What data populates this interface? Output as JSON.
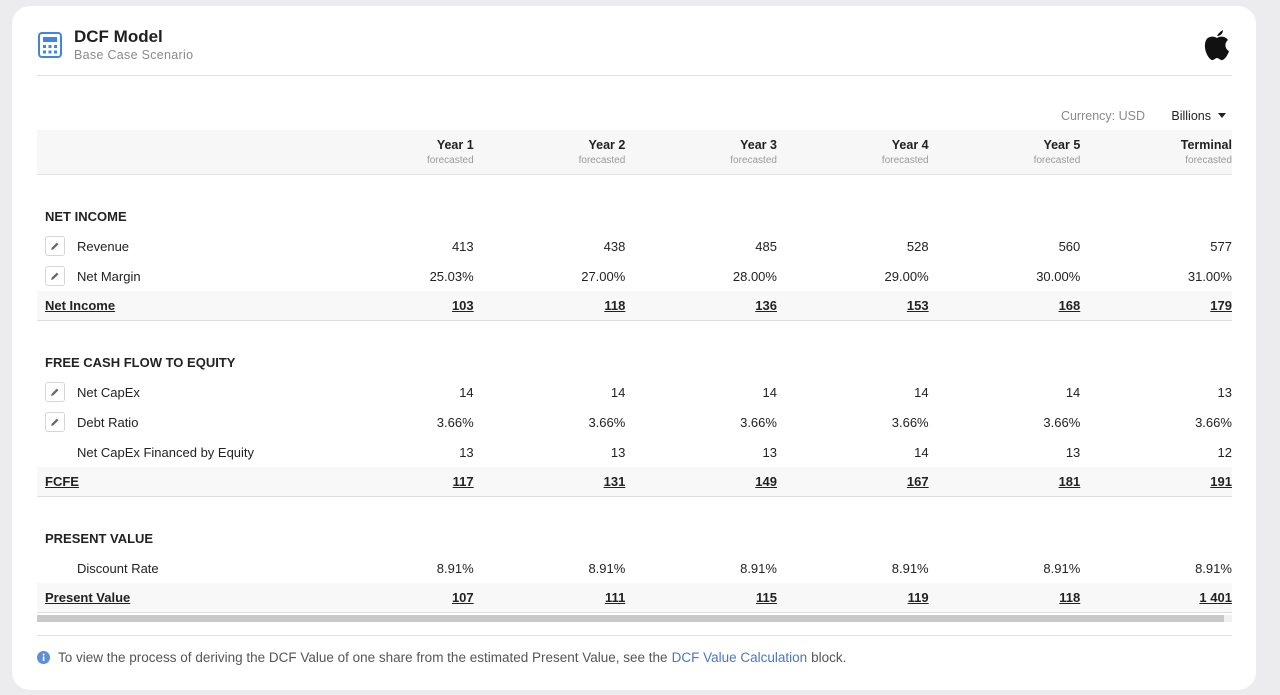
{
  "header": {
    "title": "DCF Model",
    "subtitle": "Base Case Scenario"
  },
  "toolbar": {
    "currency": "Currency: USD",
    "units": "Billions"
  },
  "table": {
    "columns": [
      {
        "name": "Year 1",
        "note": "forecasted"
      },
      {
        "name": "Year 2",
        "note": "forecasted"
      },
      {
        "name": "Year 3",
        "note": "forecasted"
      },
      {
        "name": "Year 4",
        "note": "forecasted"
      },
      {
        "name": "Year 5",
        "note": "forecasted"
      },
      {
        "name": "Terminal",
        "note": "forecasted"
      }
    ],
    "sections": [
      {
        "title": "NET INCOME",
        "rows": [
          {
            "label": "Revenue",
            "editable": true,
            "cells": [
              "413",
              "438",
              "485",
              "528",
              "560",
              "577"
            ]
          },
          {
            "label": "Net Margin",
            "editable": true,
            "cells": [
              "25.03%",
              "27.00%",
              "28.00%",
              "29.00%",
              "30.00%",
              "31.00%"
            ]
          }
        ],
        "total": {
          "label": "Net Income",
          "cells": [
            "103",
            "118",
            "136",
            "153",
            "168",
            "179"
          ]
        }
      },
      {
        "title": "FREE CASH FLOW TO EQUITY",
        "rows": [
          {
            "label": "Net CapEx",
            "editable": true,
            "cells": [
              "14",
              "14",
              "14",
              "14",
              "14",
              "13"
            ]
          },
          {
            "label": "Debt Ratio",
            "editable": true,
            "cells": [
              "3.66%",
              "3.66%",
              "3.66%",
              "3.66%",
              "3.66%",
              "3.66%"
            ]
          },
          {
            "label": "Net CapEx Financed by Equity",
            "editable": false,
            "cells": [
              "13",
              "13",
              "13",
              "14",
              "13",
              "12"
            ]
          }
        ],
        "total": {
          "label": "FCFE",
          "cells": [
            "117",
            "131",
            "149",
            "167",
            "181",
            "191"
          ]
        }
      },
      {
        "title": "PRESENT VALUE",
        "rows": [
          {
            "label": "Discount Rate",
            "editable": false,
            "cells": [
              "8.91%",
              "8.91%",
              "8.91%",
              "8.91%",
              "8.91%",
              "8.91%"
            ]
          }
        ],
        "total": {
          "label": "Present Value",
          "cells": [
            "107",
            "111",
            "115",
            "119",
            "118",
            "1 401"
          ]
        }
      }
    ]
  },
  "footer": {
    "text": "To view the process of deriving the DCF Value of one share from the estimated Present Value, see the",
    "link": "DCF Value Calculation",
    "suffix": "block."
  }
}
